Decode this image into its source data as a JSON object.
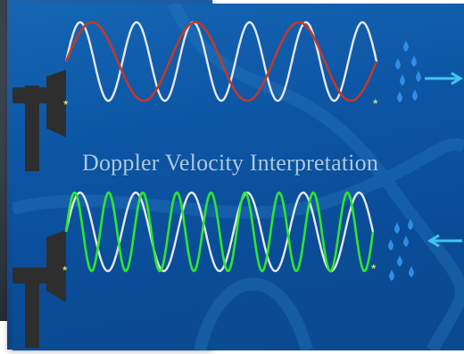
{
  "title": "Doppler Velocity Interpretation",
  "colors": {
    "background": "#0d56a5",
    "transmitted_wave": "#e8e8e8",
    "receding_echo": "#c0392b",
    "approaching_echo": "#2ee62e",
    "arrow": "#3fc6ef",
    "raindrop": "#2f8fe8",
    "radar_tower": "#2e2e2e",
    "marker": "#ffff66",
    "title_text": "#a9cbe3"
  },
  "icons": {
    "tower": "radar-tower-icon",
    "raindrops": "raindrop-cluster-icon",
    "away_arrow": "arrow-right-icon",
    "toward_arrow": "arrow-left-icon"
  },
  "panels": [
    {
      "name": "receding-precipitation",
      "transmitted_cycles": 5.5,
      "echo_cycles": 3,
      "echo": "receding_echo",
      "arrow": "away"
    },
    {
      "name": "approaching-precipitation",
      "transmitted_cycles": 5.5,
      "echo_cycles": 9,
      "echo": "approaching_echo",
      "arrow": "toward"
    }
  ]
}
